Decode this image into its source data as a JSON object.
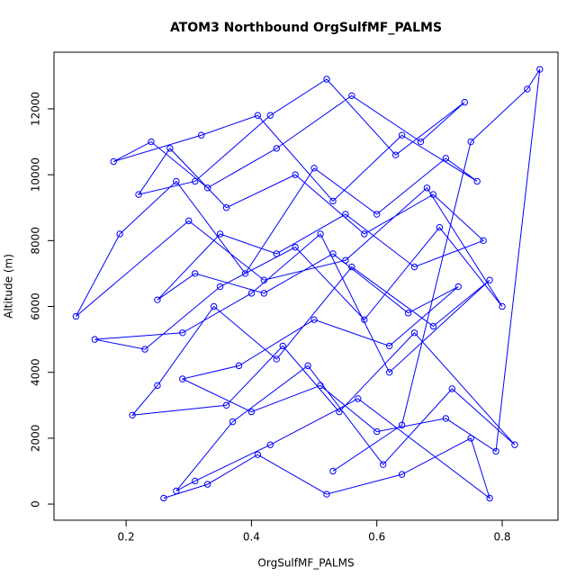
{
  "chart_data": {
    "type": "line",
    "markers": true,
    "title": "ATOM3 Northbound OrgSulfMF_PALMS",
    "x_label": "OrgSulfMF_PALMS",
    "y_label": "Altitude (m)",
    "color": "#0000ff",
    "xlim": [
      0.085,
      0.889
    ],
    "ylim": [
      -490,
      13720
    ],
    "xticks": [
      0.2,
      0.4,
      0.6,
      0.8
    ],
    "yticks": [
      0,
      2000,
      4000,
      6000,
      8000,
      10000,
      12000
    ],
    "x": [
      0.26,
      0.33,
      0.41,
      0.52,
      0.64,
      0.75,
      0.78,
      0.57,
      0.43,
      0.31,
      0.28,
      0.37,
      0.49,
      0.61,
      0.72,
      0.82,
      0.66,
      0.54,
      0.45,
      0.36,
      0.21,
      0.25,
      0.34,
      0.44,
      0.56,
      0.69,
      0.78,
      0.62,
      0.51,
      0.4,
      0.29,
      0.15,
      0.23,
      0.35,
      0.47,
      0.58,
      0.7,
      0.8,
      0.68,
      0.55,
      0.42,
      0.3,
      0.12,
      0.19,
      0.28,
      0.39,
      0.5,
      0.6,
      0.71,
      0.76,
      0.64,
      0.53,
      0.41,
      0.32,
      0.18,
      0.24,
      0.33,
      0.44,
      0.56,
      0.67,
      0.74,
      0.63,
      0.52,
      0.43,
      0.31,
      0.22,
      0.27,
      0.36,
      0.47,
      0.58,
      0.69,
      0.77,
      0.66,
      0.55,
      0.44,
      0.35,
      0.25,
      0.31,
      0.42,
      0.53,
      0.65,
      0.73,
      0.62,
      0.5,
      0.38,
      0.29,
      0.4,
      0.51,
      0.6,
      0.71,
      0.79,
      0.86,
      0.84,
      0.75,
      0.64,
      0.53
    ],
    "values": [
      180,
      600,
      1500,
      300,
      900,
      2000,
      180,
      3200,
      1800,
      700,
      400,
      2500,
      4200,
      1200,
      3500,
      1800,
      5200,
      2800,
      4800,
      3000,
      2700,
      3600,
      6000,
      4400,
      7200,
      5400,
      6800,
      4000,
      8200,
      6400,
      5200,
      5000,
      4700,
      6600,
      7800,
      5600,
      8400,
      6000,
      9600,
      7400,
      6800,
      8600,
      5700,
      8200,
      9800,
      7000,
      10200,
      8800,
      10500,
      9800,
      11200,
      9200,
      11800,
      11200,
      10400,
      11000,
      9600,
      10800,
      12400,
      11000,
      12200,
      10600,
      12900,
      11800,
      9800,
      9400,
      10800,
      9000,
      10000,
      8200,
      9400,
      8000,
      7200,
      8800,
      7600,
      8200,
      6200,
      7000,
      6400,
      7600,
      5800,
      6600,
      4800,
      5600,
      4200,
      3800,
      2800,
      3600,
      2200,
      2600,
      1600,
      13200,
      12600,
      11000,
      2400,
      1000
    ]
  }
}
